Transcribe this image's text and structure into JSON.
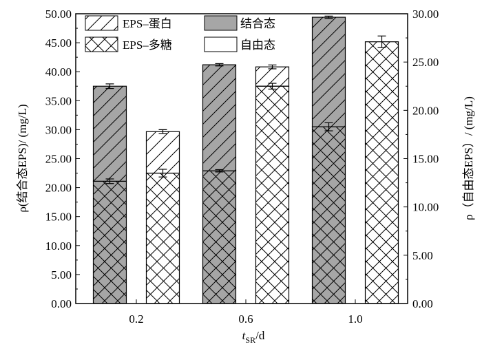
{
  "colors": {
    "bound_fill": "#a6a6a6",
    "free_fill": "#ffffff",
    "stroke": "#000000"
  },
  "chart_data": {
    "type": "bar",
    "stacked": true,
    "categories": [
      "0.2",
      "0.6",
      "1.0"
    ],
    "xlabel_var": "t",
    "xlabel_sub": "SR",
    "xlabel_unit": "/d",
    "ylabel_left": "ρ(结合态EPS)/ (mg/L)",
    "ylabel_right": "ρ（自由态EPS）/ (mg/L)",
    "ylim_left": [
      0,
      50
    ],
    "ylim_right": [
      0,
      30
    ],
    "yticks_left": [
      "0.00",
      "5.00",
      "10.00",
      "15.00",
      "20.00",
      "25.00",
      "30.00",
      "35.00",
      "40.00",
      "45.00",
      "50.00"
    ],
    "yticks_right": [
      "0.00",
      "5.00",
      "10.00",
      "15.00",
      "20.00",
      "25.00",
      "30.00"
    ],
    "legend": {
      "position": "top-left",
      "items": [
        {
          "label": "EPS–蛋白",
          "pattern": "diagonal",
          "fill": "white"
        },
        {
          "label": "结合态",
          "pattern": "none",
          "fill": "gray"
        },
        {
          "label": "EPS–多糖",
          "pattern": "crosshatch",
          "fill": "white"
        },
        {
          "label": "自由态",
          "pattern": "none",
          "fill": "white"
        }
      ]
    },
    "groups": [
      {
        "category": "0.2",
        "bound": {
          "polysaccharide": 21.1,
          "total": 37.5,
          "err_polysaccharide": 0.4,
          "err_total": 0.4
        },
        "free": {
          "polysaccharide": 13.5,
          "total": 17.8,
          "err_polysaccharide": 0.4,
          "err_total": 0.2
        }
      },
      {
        "category": "0.6",
        "bound": {
          "polysaccharide": 22.9,
          "total": 41.2,
          "err_polysaccharide": 0.2,
          "err_total": 0.2
        },
        "free": {
          "polysaccharide": 22.5,
          "total": 24.5,
          "err_polysaccharide": 0.3,
          "err_total": 0.2
        }
      },
      {
        "category": "1.0",
        "bound": {
          "polysaccharide": 30.5,
          "total": 49.4,
          "err_polysaccharide": 0.7,
          "err_total": 0.2
        },
        "free": {
          "polysaccharide": 27.1,
          "total": 27.1,
          "err_polysaccharide": 0.6,
          "err_total": 0.6
        }
      }
    ]
  }
}
